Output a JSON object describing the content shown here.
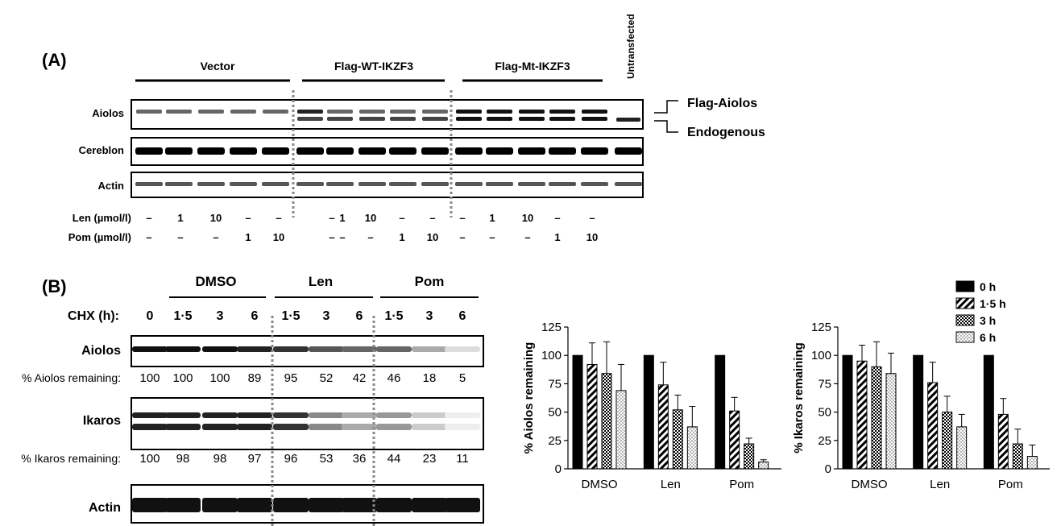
{
  "panelA": {
    "label": "(A)",
    "groups": [
      "Vector",
      "Flag-WT-IKZF3",
      "Flag-Mt-IKZF3"
    ],
    "untransfected": "Untransfected",
    "rows": [
      "Aiolos",
      "Cereblon",
      "Actin"
    ],
    "band_labels": [
      "Flag-Aiolos",
      "Endogenous"
    ],
    "treatments": [
      {
        "label": "Len (µmol/l)",
        "values": [
          "–",
          "1",
          "10",
          "–",
          "–",
          "–",
          "1",
          "10",
          "–",
          "–",
          "–",
          "1",
          "10",
          "–",
          "–"
        ]
      },
      {
        "label": "Pom (µmol/l)",
        "values": [
          "–",
          "–",
          "–",
          "1",
          "10",
          "–",
          "–",
          "–",
          "1",
          "10",
          "–",
          "–",
          "–",
          "1",
          "10"
        ]
      }
    ]
  },
  "panelB": {
    "label": "(B)",
    "groups": [
      "DMSO",
      "Len",
      "Pom"
    ],
    "chx_label": "CHX (h):",
    "timepoints": [
      "0",
      "1·5",
      "3",
      "6",
      "1·5",
      "3",
      "6",
      "1·5",
      "3",
      "6"
    ],
    "blots": [
      {
        "label": "Aiolos",
        "remaining_label": "% Aiolos remaining:",
        "values": [
          "100",
          "100",
          "100",
          "89",
          "95",
          "52",
          "42",
          "46",
          "18",
          "5"
        ]
      },
      {
        "label": "Ikaros",
        "remaining_label": "% Ikaros remaining:",
        "values": [
          "100",
          "98",
          "98",
          "97",
          "96",
          "53",
          "36",
          "44",
          "23",
          "11"
        ]
      },
      {
        "label": "Actin"
      }
    ]
  },
  "chart_data": [
    {
      "type": "bar",
      "ylabel": "% Aiolos remaining",
      "categories": [
        "DMSO",
        "Len",
        "Pom"
      ],
      "ylim": [
        0,
        125
      ],
      "yticks": [
        "0",
        "25",
        "50",
        "75",
        "100",
        "125"
      ],
      "series": [
        {
          "name": "0 h",
          "values": [
            100,
            100,
            100
          ],
          "errors": [
            0,
            0,
            0
          ]
        },
        {
          "name": "1·5 h",
          "values": [
            92,
            74,
            51
          ],
          "errors": [
            19,
            20,
            12
          ]
        },
        {
          "name": "3 h",
          "values": [
            84,
            52,
            22
          ],
          "errors": [
            28,
            13,
            5
          ]
        },
        {
          "name": "6 h",
          "values": [
            69,
            37,
            6
          ],
          "errors": [
            23,
            18,
            2
          ]
        }
      ]
    },
    {
      "type": "bar",
      "ylabel": "% Ikaros remaining",
      "categories": [
        "DMSO",
        "Len",
        "Pom"
      ],
      "ylim": [
        0,
        125
      ],
      "yticks": [
        "0",
        "25",
        "50",
        "75",
        "100",
        "125"
      ],
      "legend": [
        "0 h",
        "1·5 h",
        "3 h",
        "6 h"
      ],
      "series": [
        {
          "name": "0 h",
          "values": [
            100,
            100,
            100
          ],
          "errors": [
            0,
            0,
            0
          ]
        },
        {
          "name": "1·5 h",
          "values": [
            95,
            76,
            48
          ],
          "errors": [
            14,
            18,
            14
          ]
        },
        {
          "name": "3 h",
          "values": [
            90,
            50,
            22
          ],
          "errors": [
            22,
            14,
            13
          ]
        },
        {
          "name": "6 h",
          "values": [
            84,
            37,
            11
          ],
          "errors": [
            18,
            11,
            10
          ]
        }
      ]
    }
  ]
}
